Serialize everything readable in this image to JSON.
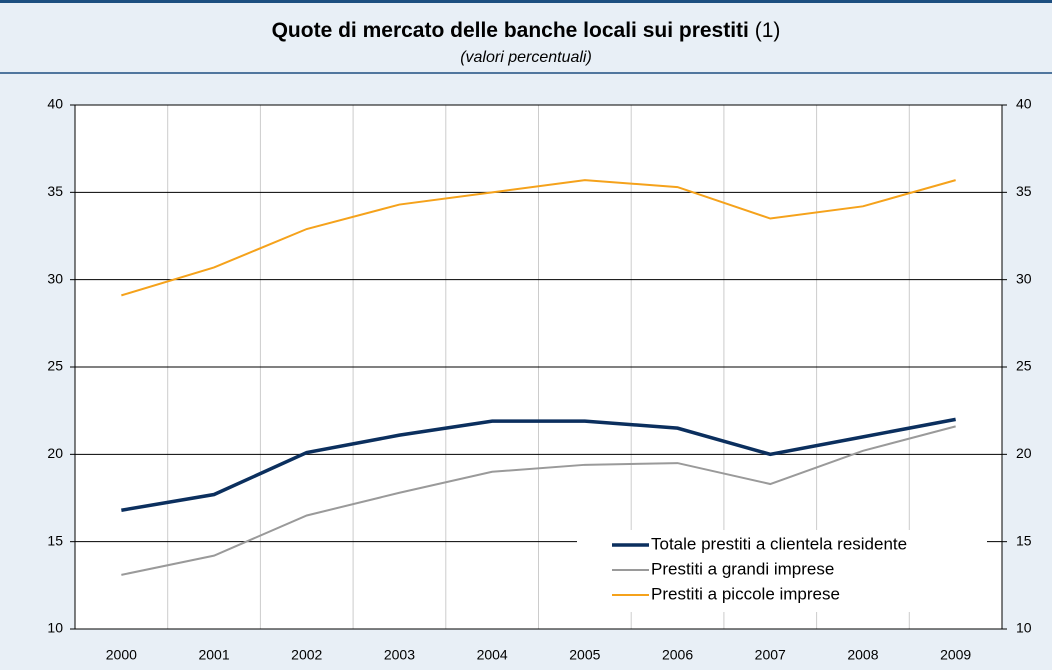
{
  "chart_data": {
    "type": "line",
    "title": "Quote di mercato delle banche locali sui prestiti",
    "title_note": "(1)",
    "subtitle": "(valori percentuali)",
    "categories": [
      "2000",
      "2001",
      "2002",
      "2003",
      "2004",
      "2005",
      "2006",
      "2007",
      "2008",
      "2009"
    ],
    "series": [
      {
        "name": "Totale prestiti a clientela residente",
        "color": "#0b2f5e",
        "values": [
          16.8,
          17.7,
          20.1,
          21.1,
          21.9,
          21.9,
          21.5,
          20.0,
          21.0,
          22.0
        ]
      },
      {
        "name": "Prestiti a grandi imprese",
        "color": "#9a9a9a",
        "values": [
          13.1,
          14.2,
          16.5,
          17.8,
          19.0,
          19.4,
          19.5,
          18.3,
          20.2,
          21.6
        ]
      },
      {
        "name": "Prestiti a piccole imprese",
        "color": "#f5a21b",
        "values": [
          29.1,
          30.7,
          32.9,
          34.3,
          35.0,
          35.7,
          35.3,
          33.5,
          34.2,
          35.7
        ]
      }
    ],
    "ylim": [
      10,
      40
    ],
    "yticks": [
      10,
      15,
      20,
      25,
      30,
      35,
      40
    ],
    "y2lim": [
      10,
      40
    ],
    "y2ticks": [
      10,
      15,
      20,
      25,
      30,
      35,
      40
    ],
    "grid": true,
    "legend": "lower right"
  }
}
